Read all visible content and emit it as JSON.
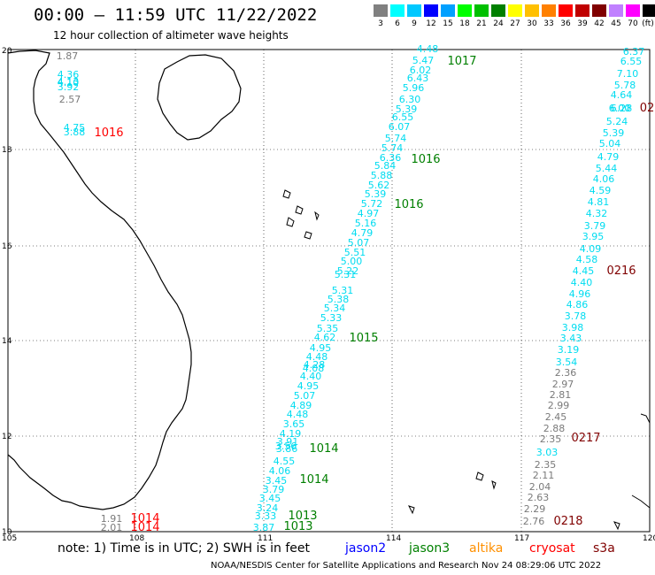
{
  "title": "00:00 – 11:59 UTC 11/22/2022",
  "subtitle": "12 hour collection of altimeter wave heights",
  "scale": {
    "labels": [
      "3",
      "6",
      "9",
      "12",
      "15",
      "18",
      "21",
      "24",
      "27",
      "30",
      "33",
      "36",
      "39",
      "42",
      "45",
      "70",
      "(ft)"
    ],
    "colors": [
      "#808080",
      "#00ffff",
      "#00c8ff",
      "#0000ff",
      "#00a0ff",
      "#00ff00",
      "#00c000",
      "#008000",
      "#ffff00",
      "#ffc000",
      "#ff8000",
      "#ff0000",
      "#c00000",
      "#800000",
      "#c080ff",
      "#ff00ff",
      "#000000"
    ]
  },
  "lon_labels": [
    "105",
    "108",
    "111",
    "114",
    "117",
    "120"
  ],
  "lat_labels": [
    "20",
    "18",
    "16",
    "14",
    "12",
    "10"
  ],
  "track_colors": {
    "cyan": "#00dcf0",
    "gray": "#7a7a7a",
    "green": "#007f00",
    "red": "#ff0000",
    "maroon": "#800000"
  },
  "tracks": [
    {
      "color": "cyan",
      "labels": [
        [
          "4.48",
          483,
          59
        ],
        [
          "5.47",
          478,
          72
        ],
        [
          "6.02",
          475,
          83
        ],
        [
          "6.43",
          472,
          92
        ],
        [
          "5.96",
          467,
          103
        ],
        [
          "6.30",
          463,
          116
        ],
        [
          "5.39",
          459,
          127
        ],
        [
          "6.55",
          455,
          136
        ],
        [
          "6.07",
          451,
          147
        ],
        [
          "5.74",
          447,
          160
        ],
        [
          "5.74",
          443,
          171
        ],
        [
          "6.36",
          441,
          182
        ],
        [
          "5.84",
          435,
          191
        ],
        [
          "5.88",
          431,
          202
        ],
        [
          "5.62",
          428,
          213
        ],
        [
          "5.39",
          424,
          223
        ],
        [
          "5.72",
          420,
          234
        ],
        [
          "4.97",
          416,
          245
        ],
        [
          "5.16",
          413,
          256
        ],
        [
          "4.79",
          409,
          267
        ],
        [
          "5.07",
          405,
          278
        ],
        [
          "5.51",
          401,
          289
        ],
        [
          "5.00",
          397,
          299
        ],
        [
          "5.22",
          393,
          310
        ],
        [
          "5.31",
          390,
          314
        ],
        [
          "5.31",
          387,
          332
        ],
        [
          "5.38",
          382,
          342
        ],
        [
          "5.34",
          378,
          352
        ],
        [
          "5.33",
          374,
          363
        ],
        [
          "5.35",
          370,
          375
        ],
        [
          "4.62",
          367,
          385
        ],
        [
          "4.95",
          362,
          397
        ],
        [
          "4.48",
          358,
          407
        ],
        [
          "4.28",
          355,
          416
        ],
        [
          "4.08",
          354,
          420
        ],
        [
          "4.40",
          351,
          429
        ],
        [
          "4.95",
          348,
          440
        ],
        [
          "5.07",
          344,
          451
        ],
        [
          "4.89",
          340,
          462
        ],
        [
          "4.48",
          336,
          472
        ],
        [
          "3.65",
          332,
          483
        ],
        [
          "4.19",
          328,
          494
        ],
        [
          "3.91",
          325,
          503
        ],
        [
          "3.56",
          323,
          508
        ],
        [
          "3.86",
          324,
          511
        ],
        [
          "4.55",
          321,
          525
        ],
        [
          "4.06",
          316,
          536
        ],
        [
          "3.45",
          312,
          547
        ],
        [
          "3.79",
          309,
          557
        ],
        [
          "3.45",
          305,
          567
        ],
        [
          "3.24",
          302,
          578
        ],
        [
          "3.33",
          300,
          587
        ],
        [
          "3.87",
          298,
          600
        ],
        [
          "4.36",
          77,
          88
        ],
        [
          "4.13",
          77,
          96
        ],
        [
          "4.10",
          77,
          97
        ],
        [
          "3.92",
          77,
          102
        ],
        [
          "4.75",
          84,
          148
        ],
        [
          "3.88",
          84,
          153
        ],
        [
          "6.37",
          716,
          62
        ],
        [
          "6.55",
          713,
          73
        ],
        [
          "7.10",
          709,
          87
        ],
        [
          "5.78",
          706,
          100
        ],
        [
          "4.64",
          702,
          111
        ],
        [
          "6.00",
          700,
          126
        ],
        [
          "6.28",
          702,
          126
        ],
        [
          "5.24",
          697,
          141
        ],
        [
          "5.39",
          693,
          154
        ],
        [
          "5.04",
          689,
          166
        ],
        [
          "4.79",
          687,
          181
        ],
        [
          "5.44",
          685,
          194
        ],
        [
          "4.06",
          682,
          206
        ],
        [
          "4.59",
          678,
          219
        ],
        [
          "4.81",
          676,
          232
        ],
        [
          "4.32",
          674,
          245
        ],
        [
          "3.79",
          672,
          259
        ],
        [
          "3.95",
          670,
          271
        ],
        [
          "4.09",
          667,
          285
        ],
        [
          "4.58",
          663,
          297
        ],
        [
          "4.45",
          659,
          310
        ],
        [
          "4.40",
          657,
          323
        ],
        [
          "4.96",
          655,
          336
        ],
        [
          "4.86",
          652,
          348
        ],
        [
          "3.78",
          650,
          361
        ],
        [
          "3.98",
          647,
          374
        ],
        [
          "3.43",
          645,
          386
        ],
        [
          "3.19",
          642,
          399
        ],
        [
          "3.54",
          640,
          413
        ],
        [
          "3.03",
          618,
          515
        ]
      ]
    },
    {
      "color": "gray",
      "labels": [
        [
          "1.87",
          76,
          67
        ],
        [
          "2.57",
          79,
          116
        ],
        [
          "2.36",
          639,
          425
        ],
        [
          "2.97",
          636,
          438
        ],
        [
          "2.81",
          633,
          450
        ],
        [
          "2.99",
          631,
          462
        ],
        [
          "2.45",
          628,
          475
        ],
        [
          "2.88",
          626,
          488
        ],
        [
          "2.35",
          622,
          500
        ],
        [
          "2.35",
          616,
          529
        ],
        [
          "2.11",
          614,
          541
        ],
        [
          "2.04",
          610,
          554
        ],
        [
          "2.63",
          608,
          566
        ],
        [
          "2.29",
          604,
          579
        ],
        [
          "2.76",
          603,
          593
        ],
        [
          "1.91",
          126,
          590
        ],
        [
          "2.01",
          126,
          600
        ]
      ]
    },
    {
      "color": "green",
      "labels": [
        [
          "1017",
          522,
          73
        ],
        [
          "1016",
          481,
          184
        ],
        [
          "1016",
          462,
          235
        ],
        [
          "1015",
          411,
          386
        ],
        [
          "1014",
          366,
          511
        ],
        [
          "1014",
          355,
          546
        ],
        [
          "1013",
          342,
          587
        ],
        [
          "1013",
          337,
          599
        ]
      ]
    },
    {
      "color": "red",
      "labels": [
        [
          "1016",
          123,
          154
        ],
        [
          "1014",
          164,
          590
        ],
        [
          "1014",
          164,
          600
        ]
      ]
    },
    {
      "color": "maroon",
      "labels": [
        [
          "02",
          731,
          126
        ],
        [
          "0216",
          702,
          310
        ],
        [
          "0217",
          662,
          499
        ],
        [
          "0218",
          642,
          593
        ]
      ]
    }
  ],
  "legend": {
    "note": "note:  1) Time is in UTC;  2) SWH is in feet",
    "missions": [
      {
        "name": "jason2",
        "color": "#0000ff"
      },
      {
        "name": "jason3",
        "color": "#008000"
      },
      {
        "name": "altika",
        "color": "#ff9000"
      },
      {
        "name": "cryosat",
        "color": "#ff0000"
      },
      {
        "name": "s3a",
        "color": "#800000"
      }
    ]
  },
  "credit": "NOAA/NESDIS Center for Satellite Applications and Research     Nov 24 08:29:06 UTC 2022"
}
